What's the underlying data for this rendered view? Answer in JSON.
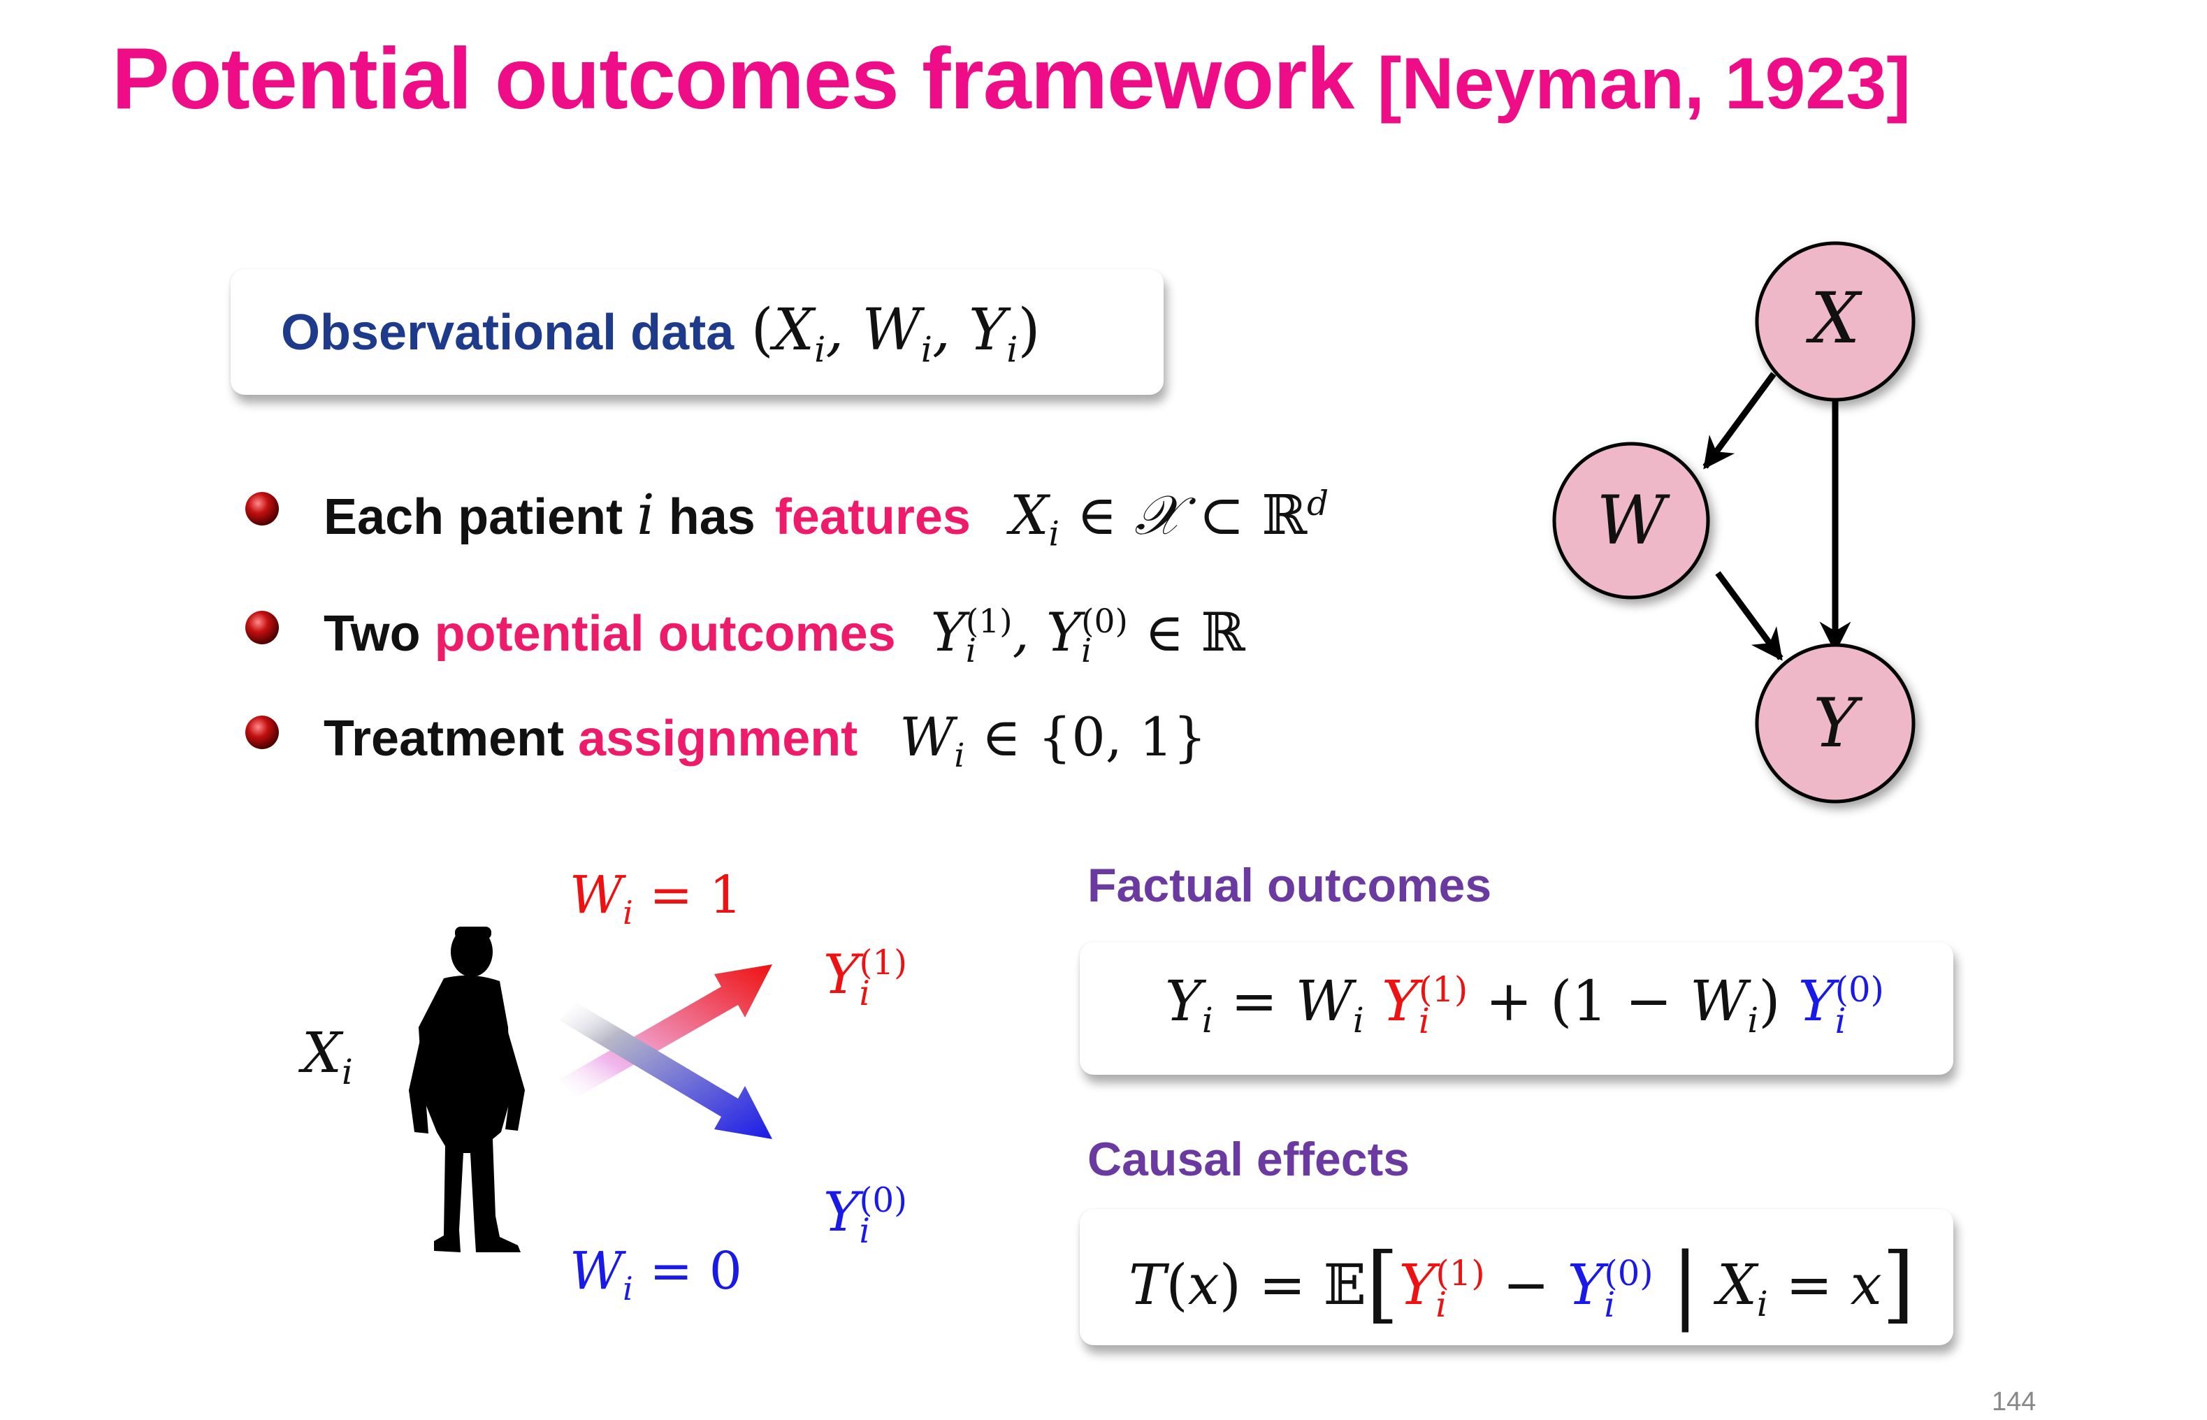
{
  "slide": {
    "title": "Potential outcomes framework",
    "citation": "[Neyman, 1923]",
    "page_number": "144"
  },
  "observational": {
    "label": "Observational data",
    "formula": "(X_i, W_i, Y_i)"
  },
  "bullets": [
    {
      "prefix": "Each patient",
      "var": "i",
      "mid": "has",
      "highlight": "features",
      "formula": "X_i ∈ 𝒳 ⊂ ℝ^d"
    },
    {
      "prefix": "Two",
      "highlight": "potential outcomes",
      "formula": "Y_i^(1), Y_i^(0) ∈ ℝ"
    },
    {
      "prefix": "Treatment",
      "highlight": "assignment",
      "formula": "W_i ∈ {0, 1}"
    }
  ],
  "graph": {
    "nodes": [
      "X",
      "W",
      "Y"
    ],
    "edges": [
      [
        "X",
        "W"
      ],
      [
        "X",
        "Y"
      ],
      [
        "W",
        "Y"
      ]
    ],
    "node_fill": "#efb8c8"
  },
  "illustration": {
    "person_label": "X_i",
    "treated_label": "W_i = 1",
    "control_label": "W_i = 0",
    "treated_outcome": "Y_i^(1)",
    "control_outcome": "Y_i^(0)",
    "treated_color": "#ee1111",
    "control_color": "#1a1ae8"
  },
  "factual": {
    "heading": "Factual outcomes",
    "formula": "Y_i = W_i Y_i^(1) + (1 − W_i) Y_i^(0)"
  },
  "causal": {
    "heading": "Causal effects",
    "formula": "T(x) = 𝔼[Y_i^(1) − Y_i^(0) | X_i = x]"
  },
  "colors": {
    "title": "#ee0d86",
    "navy": "#1e3a8a",
    "pink": "#ee1a6a",
    "purple": "#6a3aa0"
  }
}
